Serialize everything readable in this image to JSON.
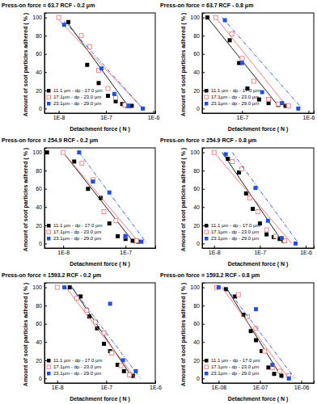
{
  "chart_data": [
    {
      "type": "scatter",
      "title": "Press-on force = 63.7 RCF - 0.2 μm",
      "x_label": "Detachment force ( N )",
      "y_label": "Amount of soot particles adhered ( % )",
      "log": "x",
      "legend": "bottom-left",
      "grid": false,
      "xlim": [
        5e-09,
        1.1e-06
      ],
      "ylim": [
        -5,
        105
      ],
      "xticks": [
        {
          "value": 1e-08,
          "label": "1E-8"
        },
        {
          "value": 1e-07,
          "label": "1E-7"
        },
        {
          "value": 1e-06,
          "label": "1E-6"
        }
      ],
      "yticks": [
        0,
        20,
        40,
        60,
        80,
        100
      ],
      "series": [
        {
          "name": "11.1 μm - dp - 17.0 μm",
          "color": "#000000",
          "marker": "square",
          "line_style": "solid",
          "x": [
            1.6e-08,
            4e-08,
            7e-08,
            1.1e-07,
            1.6e-07,
            2.2e-07,
            2.8e-07,
            3.5e-07
          ],
          "values": [
            95,
            48,
            28,
            14,
            8,
            5,
            3,
            3
          ],
          "fit": {
            "x": [
              1.5e-08,
              3.2e-07
            ],
            "values": [
              95,
              0
            ]
          }
        },
        {
          "name": "17.1μm - dp - 23.0 μm",
          "color": "#e87070",
          "marker": "open-square",
          "line_style": "solid",
          "x": [
            1e-08,
            3e-08,
            4.5e-08,
            7e-08,
            1.1e-07,
            1.6e-07,
            2.5e-07
          ],
          "values": [
            100,
            80,
            68,
            42,
            22,
            12,
            4
          ],
          "fit": {
            "x": [
              9e-09,
              6e-07
            ],
            "values": [
              100,
              0
            ]
          }
        },
        {
          "name": "23.1μm - dp - 29.0 μm",
          "color": "#2050e0",
          "marker": "square",
          "line_style": "dash-dot",
          "x": [
            1.3e-08,
            8e-08,
            1.5e-07,
            3e-07,
            6e-07
          ],
          "values": [
            92,
            44,
            16,
            3,
            0
          ],
          "fit": {
            "x": [
              1.3e-08,
              6e-07
            ],
            "values": [
              96,
              0
            ]
          }
        }
      ]
    },
    {
      "type": "scatter",
      "title": "Press-on force = 63.7 RCF - 0.8 μm",
      "x_label": "Detachment force ( N )",
      "y_label": "Amount of soot particles adhered ( % )",
      "log": "x",
      "legend": "bottom-left",
      "grid": false,
      "xlim": [
        2.5e-08,
        1.2e-06
      ],
      "ylim": [
        -5,
        105
      ],
      "xticks": [
        {
          "value": 1e-07,
          "label": "1E-7"
        },
        {
          "value": 1e-06,
          "label": "1E-6"
        }
      ],
      "yticks": [
        0,
        20,
        40,
        60,
        80,
        100
      ],
      "series": [
        {
          "name": "11.1 μm - dp - 17.0 μm",
          "color": "#000000",
          "marker": "square",
          "line_style": "solid",
          "x": [
            3e-08,
            6.5e-08,
            9e-08,
            1.2e-07,
            1.8e-07,
            2.5e-07,
            3.5e-07,
            4.5e-07
          ],
          "values": [
            100,
            75,
            50,
            22,
            10,
            6,
            4,
            3
          ],
          "fit": {
            "x": [
              3e-08,
              3.5e-07
            ],
            "values": [
              100,
              3
            ]
          }
        },
        {
          "name": "17.1μm - dp - 23.0 μm",
          "color": "#e87070",
          "marker": "open-square",
          "line_style": "solid",
          "x": [
            4e-08,
            7e-08,
            1e-07,
            1.5e-07,
            2.5e-07,
            3.5e-07,
            5e-07
          ],
          "values": [
            100,
            82,
            55,
            30,
            10,
            5,
            3
          ],
          "fit": {
            "x": [
              4e-08,
              5e-07
            ],
            "values": [
              100,
              0
            ]
          }
        },
        {
          "name": "23.1μm - dp - 29.0 μm",
          "color": "#2050e0",
          "marker": "square",
          "line_style": "dash-dot",
          "x": [
            5.5e-08,
            1e-07,
            2e-07,
            4e-07,
            7e-07
          ],
          "values": [
            97,
            50,
            18,
            6,
            0
          ],
          "fit": {
            "x": [
              5e-08,
              8e-07
            ],
            "values": [
              100,
              0
            ]
          }
        }
      ]
    },
    {
      "type": "scatter",
      "title": "Press-on force = 254.9 RCF - 0.2 μm",
      "x_label": "Detachment force ( N )",
      "y_label": "Amount of soot particles adhered ( % )",
      "log": "x",
      "legend": "bottom-left",
      "grid": false,
      "xlim": [
        5e-09,
        3e-07
      ],
      "ylim": [
        -5,
        105
      ],
      "xticks": [
        {
          "value": 1e-08,
          "label": "1E-8"
        },
        {
          "value": 1e-07,
          "label": "1E-7"
        }
      ],
      "yticks": [
        0,
        20,
        40,
        60,
        80,
        100
      ],
      "series": [
        {
          "name": "11.1 μm - dp - 17.0 μm",
          "color": "#000000",
          "marker": "square",
          "line_style": "solid",
          "x": [
            5.5e-09,
            1.5e-08,
            2.5e-08,
            4e-08,
            5.5e-08,
            7.5e-08,
            1e-07,
            1.3e-07,
            1.6e-07
          ],
          "values": [
            100,
            90,
            60,
            50,
            22,
            8,
            5,
            3,
            2
          ],
          "fit": {
            "x": [
              1e-08,
              1.4e-07
            ],
            "values": [
              100,
              0
            ]
          }
        },
        {
          "name": "17.1μm - dp - 23.0 μm",
          "color": "#e87070",
          "marker": "open-square",
          "line_style": "solid",
          "x": [
            1e-08,
            2e-08,
            3e-08,
            4.5e-08,
            7e-08,
            1e-07,
            1.5e-07
          ],
          "values": [
            100,
            88,
            70,
            35,
            25,
            8,
            3
          ],
          "fit": {
            "x": [
              1e-08,
              1.7e-07
            ],
            "values": [
              100,
              0
            ]
          }
        },
        {
          "name": "23.1μm - dp - 29.0 μm",
          "color": "#2050e0",
          "marker": "square",
          "line_style": "dash-dot",
          "x": [
            1.8e-08,
            3e-08,
            5.5e-08,
            1e-07,
            1.8e-07
          ],
          "values": [
            100,
            68,
            56,
            8,
            2
          ],
          "fit": {
            "x": [
              1.8e-08,
              2.2e-07
            ],
            "values": [
              100,
              0
            ]
          }
        }
      ]
    },
    {
      "type": "scatter",
      "title": "Press-on force = 254.9 RCF - 0.8 μm",
      "x_label": "Detachment force ( N )",
      "y_label": "Amount of soot particles adhered ( % )",
      "log": "x",
      "legend": "bottom-left",
      "grid": false,
      "xlim": [
        5.5e-09,
        1.5e-06
      ],
      "ylim": [
        -5,
        105
      ],
      "xticks": [
        {
          "value": 1e-08,
          "label": "1E-8"
        },
        {
          "value": 1e-07,
          "label": "1E-7"
        },
        {
          "value": 1e-06,
          "label": "1E-6"
        }
      ],
      "yticks": [
        0,
        20,
        40,
        60,
        80,
        100
      ],
      "series": [
        {
          "name": "11.1 μm - dp - 17.0 μm",
          "color": "#000000",
          "marker": "square",
          "line_style": "solid",
          "x": [
            2e-08,
            3.5e-08,
            5e-08,
            7e-08,
            1e-07,
            1.4e-07,
            2e-07,
            2.7e-07,
            3.3e-07
          ],
          "values": [
            93,
            78,
            55,
            38,
            22,
            10,
            7,
            5,
            3
          ],
          "fit": {
            "x": [
              1.5e-08,
              3.3e-07
            ],
            "values": [
              100,
              0
            ]
          }
        },
        {
          "name": "17.1μm - dp - 23.0 μm",
          "color": "#e87070",
          "marker": "open-square",
          "line_style": "solid",
          "x": [
            1e-08,
            2.5e-08,
            4e-08,
            6e-08,
            9e-08,
            1.4e-07,
            2.2e-07,
            3.5e-07
          ],
          "values": [
            100,
            90,
            82,
            50,
            35,
            15,
            8,
            3
          ],
          "fit": {
            "x": [
              1e-08,
              5e-07
            ],
            "values": [
              100,
              0
            ]
          }
        },
        {
          "name": "23.1μm - dp - 29.0 μm",
          "color": "#2050e0",
          "marker": "square",
          "line_style": "dash-dot",
          "x": [
            1.8e-08,
            8e-08,
            1.5e-07,
            3e-07,
            6e-07
          ],
          "values": [
            98,
            61,
            25,
            6,
            0
          ],
          "fit": {
            "x": [
              2.5e-08,
              7e-07
            ],
            "values": [
              100,
              0
            ]
          }
        }
      ]
    },
    {
      "type": "scatter",
      "title": "Press-on force = 1593.2 RCF - 0.2 μm",
      "x_label": "Detachment force ( N )",
      "y_label": "Amount of soot particles adhered ( % )",
      "log": "x",
      "legend": "bottom-left",
      "grid": false,
      "xlim": [
        5.5e-09,
        1e-06
      ],
      "ylim": [
        -5,
        105
      ],
      "xticks": [
        {
          "value": 1e-08,
          "label": "1E-8"
        },
        {
          "value": 1e-07,
          "label": "1E-7"
        },
        {
          "value": 1e-06,
          "label": "1E-6"
        }
      ],
      "yticks": [
        0,
        20,
        40,
        60,
        80,
        100
      ],
      "series": [
        {
          "name": "11.1 μm - dp - 17.0 μm",
          "color": "#000000",
          "marker": "square",
          "line_style": "solid",
          "x": [
            1.8e-08,
            3e-08,
            4.5e-08,
            6.5e-08,
            9e-08,
            1.2e-07,
            1.7e-07,
            2.3e-07,
            3e-07,
            3.5e-07
          ],
          "values": [
            100,
            90,
            68,
            55,
            38,
            30,
            15,
            8,
            4,
            3
          ],
          "fit": {
            "x": [
              2e-08,
              3.5e-07
            ],
            "values": [
              100,
              0
            ]
          }
        },
        {
          "name": "17.1μm - dp - 23.0 μm",
          "color": "#e87070",
          "marker": "open-square",
          "line_style": "solid",
          "x": [
            1e-08,
            2.5e-08,
            4e-08,
            6e-08,
            9e-08,
            1.3e-07,
            2e-07,
            3e-07
          ],
          "values": [
            100,
            88,
            75,
            62,
            50,
            28,
            14,
            4
          ],
          "fit": {
            "x": [
              1.5e-08,
              4e-07
            ],
            "values": [
              100,
              0
            ]
          }
        },
        {
          "name": "23.1μm - dp - 29.0 μm",
          "color": "#2050e0",
          "marker": "square",
          "line_style": "dash-dot",
          "x": [
            1.4e-08,
            1.2e-07,
            2.2e-07,
            4e-07
          ],
          "values": [
            100,
            82,
            20,
            8
          ],
          "fit": {
            "x": [
              2e-08,
              5e-07
            ],
            "values": [
              100,
              0
            ]
          }
        }
      ]
    },
    {
      "type": "scatter",
      "title": "Press-on force = 1593.2 RCF - 0.8 μm",
      "x_label": "Detachment force ( N )",
      "y_label": "Amount of soot particles adhered ( % )",
      "log": "x",
      "legend": "bottom-left",
      "grid": false,
      "xlim": [
        4e-09,
        2e-06
      ],
      "ylim": [
        -5,
        105
      ],
      "xticks": [
        {
          "value": 1e-08,
          "label": "1E-08"
        },
        {
          "value": 1e-07,
          "label": "1E-07"
        },
        {
          "value": 1e-06,
          "label": "1E-06"
        }
      ],
      "yticks": [
        0,
        20,
        40,
        60,
        80,
        100
      ],
      "series": [
        {
          "name": "11.1 μm - dp - 17.0 μm",
          "color": "#000000",
          "marker": "square",
          "line_style": "solid",
          "x": [
            1.5e-08,
            2.5e-08,
            4e-08,
            6e-08,
            8e-08,
            1.1e-07,
            1.6e-07,
            2.2e-07,
            3.3e-07
          ],
          "values": [
            98,
            90,
            70,
            52,
            42,
            30,
            12,
            5,
            3
          ],
          "fit": {
            "x": [
              1.5e-08,
              3.5e-07
            ],
            "values": [
              100,
              0
            ]
          }
        },
        {
          "name": "17.1μm - dp - 23.0 μm",
          "color": "#e87070",
          "marker": "open-square",
          "line_style": "solid",
          "x": [
            9e-09,
            3e-08,
            5e-08,
            8e-08,
            1.3e-07,
            2e-07,
            3e-07,
            5e-07
          ],
          "values": [
            100,
            92,
            68,
            55,
            30,
            12,
            8,
            3
          ],
          "fit": {
            "x": [
              1.2e-08,
              5e-07
            ],
            "values": [
              100,
              0
            ]
          }
        },
        {
          "name": "23.1μm - dp - 29.0 μm",
          "color": "#2050e0",
          "marker": "square",
          "line_style": "dash-dot",
          "x": [
            1e-08,
            8e-08,
            2e-07,
            5e-07
          ],
          "values": [
            100,
            76,
            15,
            0
          ],
          "fit": {
            "x": [
              1.5e-08,
              7e-07
            ],
            "values": [
              100,
              0
            ]
          }
        }
      ]
    }
  ]
}
